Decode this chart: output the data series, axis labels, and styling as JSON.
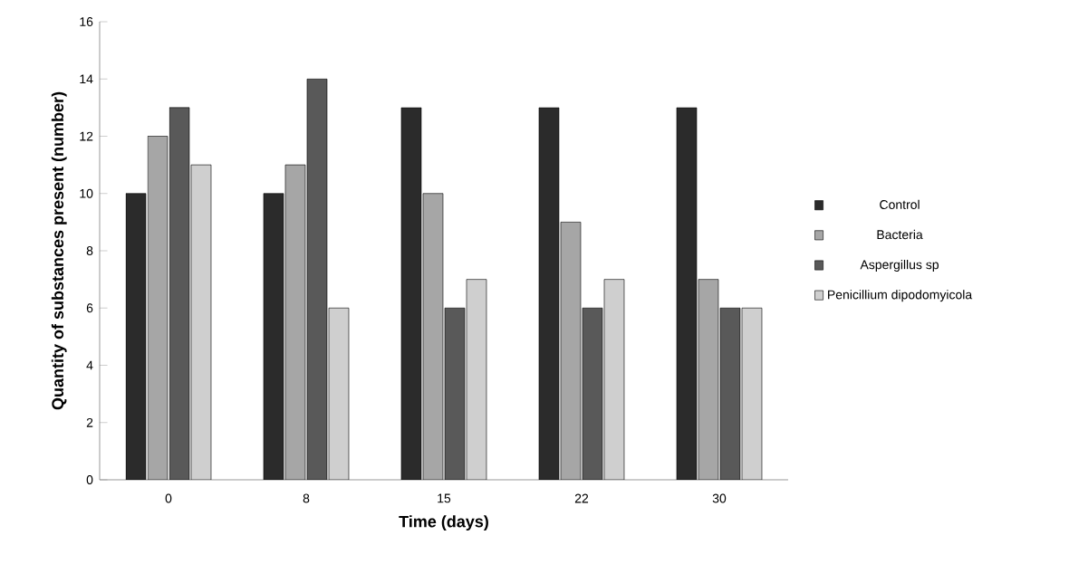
{
  "chart_data": {
    "type": "bar",
    "xlabel": "Time (days)",
    "ylabel": "Quantity of substances present (number)",
    "categories": [
      "0",
      "8",
      "15",
      "22",
      "30"
    ],
    "series": [
      {
        "name": "Control",
        "color": "#2b2b2b",
        "values": [
          10,
          10,
          13,
          13,
          13
        ]
      },
      {
        "name": "Bacteria",
        "color": "#a6a6a6",
        "values": [
          12,
          11,
          10,
          9,
          7
        ]
      },
      {
        "name": "Aspergillus sp",
        "color": "#595959",
        "values": [
          13,
          14,
          6,
          6,
          6
        ]
      },
      {
        "name": "Penicillium dipodomyicola",
        "color": "#cfcfcf",
        "values": [
          11,
          6,
          7,
          7,
          6
        ]
      }
    ],
    "ylim": [
      0,
      16
    ],
    "yticks": [
      0,
      2,
      4,
      6,
      8,
      10,
      12,
      14,
      16
    ],
    "grid": false,
    "legend": "right"
  }
}
